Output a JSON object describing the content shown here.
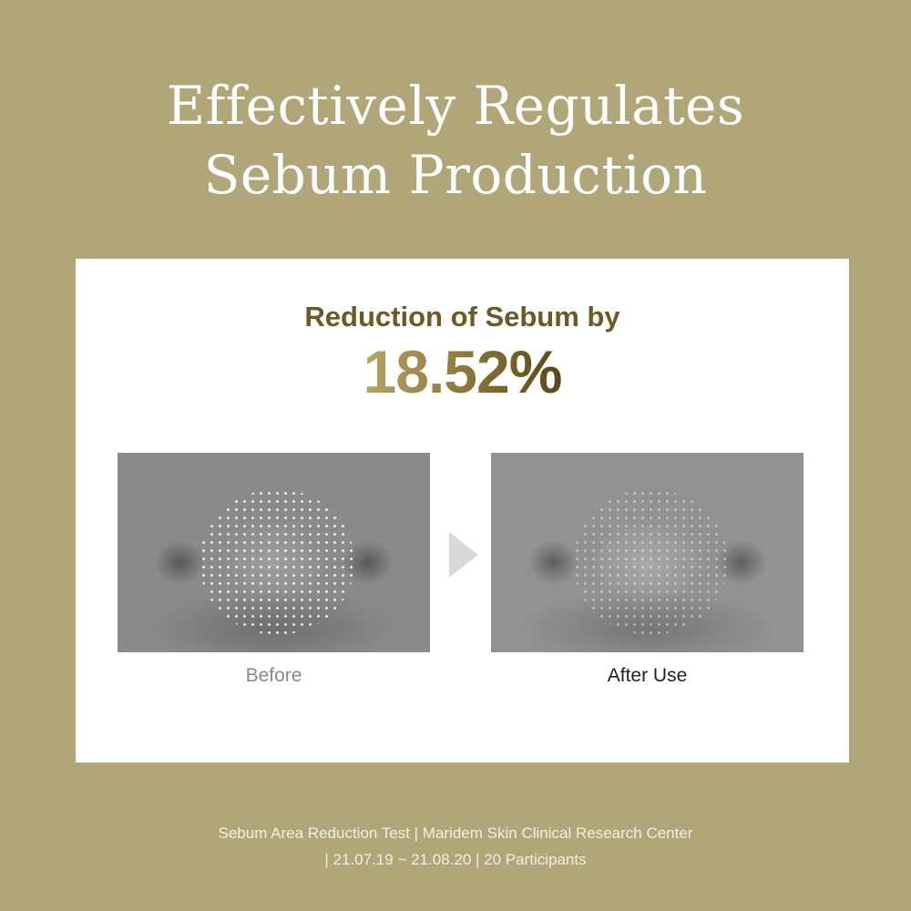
{
  "title": {
    "line1": "Effectively Regulates",
    "line2": "Sebum Production"
  },
  "card": {
    "subtitle": "Reduction of Sebum by",
    "percentage": "18.52%",
    "before_label": "Before",
    "after_label": "After Use"
  },
  "footnote": {
    "line1": "Sebum Area Reduction Test | Maridem Skin Clinical Research Center",
    "line2": "| 21.07.19 ~ 21.08.20 | 20 Participants"
  },
  "colors": {
    "background": "#b1a677",
    "accent": "#6b5a24"
  },
  "icons": {
    "arrow": "triangle-right-icon"
  }
}
